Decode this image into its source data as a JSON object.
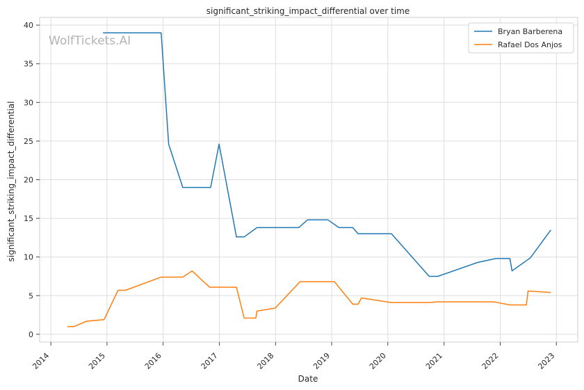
{
  "watermark": "WolfTickets.AI",
  "chart_data": {
    "type": "line",
    "title": "significant_striking_impact_differential over time",
    "xlabel": "Date",
    "ylabel": "significant_striking_impact_differential",
    "x_ticks": [
      "2014",
      "2015",
      "2016",
      "2017",
      "2018",
      "2019",
      "2020",
      "2021",
      "2022",
      "2023"
    ],
    "y_ticks": [
      "0",
      "5",
      "10",
      "15",
      "20",
      "25",
      "30",
      "35",
      "40"
    ],
    "xlim": [
      "2013-10-20",
      "2023-05-20"
    ],
    "ylim": [
      -1.0,
      41.0
    ],
    "grid": true,
    "legend_position": "top-right",
    "series": [
      {
        "name": "Bryan Barberena",
        "color": "#1f77b4",
        "points": [
          [
            "2014-12-06",
            39.0
          ],
          [
            "2015-12-19",
            39.0
          ],
          [
            "2016-02-06",
            24.6
          ],
          [
            "2016-05-08",
            19.0
          ],
          [
            "2016-11-05",
            19.0
          ],
          [
            "2016-12-30",
            24.6
          ],
          [
            "2017-04-22",
            12.6
          ],
          [
            "2017-06-11",
            12.6
          ],
          [
            "2017-09-02",
            13.8
          ],
          [
            "2018-06-01",
            13.8
          ],
          [
            "2018-07-28",
            14.8
          ],
          [
            "2018-12-08",
            14.8
          ],
          [
            "2019-02-17",
            13.8
          ],
          [
            "2019-05-18",
            13.8
          ],
          [
            "2019-06-22",
            13.0
          ],
          [
            "2020-01-25",
            13.0
          ],
          [
            "2020-09-26",
            7.5
          ],
          [
            "2020-11-21",
            7.5
          ],
          [
            "2021-08-07",
            9.3
          ],
          [
            "2021-12-04",
            9.8
          ],
          [
            "2022-03-05",
            9.8
          ],
          [
            "2022-03-19",
            8.2
          ],
          [
            "2022-07-16",
            9.9
          ],
          [
            "2022-11-26",
            13.5
          ]
        ]
      },
      {
        "name": "Rafael Dos Anjos",
        "color": "#ff7f0e",
        "points": [
          [
            "2014-04-19",
            1.0
          ],
          [
            "2014-05-31",
            1.0
          ],
          [
            "2014-08-23",
            1.7
          ],
          [
            "2014-12-13",
            1.9
          ],
          [
            "2015-03-14",
            5.7
          ],
          [
            "2015-05-02",
            5.7
          ],
          [
            "2015-12-19",
            7.4
          ],
          [
            "2016-05-08",
            7.4
          ],
          [
            "2016-07-07",
            8.2
          ],
          [
            "2016-10-29",
            6.1
          ],
          [
            "2017-04-22",
            6.1
          ],
          [
            "2017-06-11",
            2.1
          ],
          [
            "2017-08-26",
            2.1
          ],
          [
            "2017-09-02",
            3.0
          ],
          [
            "2017-12-30",
            3.4
          ],
          [
            "2018-06-09",
            6.8
          ],
          [
            "2019-01-19",
            6.8
          ],
          [
            "2019-05-18",
            3.9
          ],
          [
            "2019-06-22",
            3.9
          ],
          [
            "2019-07-13",
            4.7
          ],
          [
            "2020-01-25",
            4.1
          ],
          [
            "2020-10-01",
            4.1
          ],
          [
            "2020-11-14",
            4.2
          ],
          [
            "2021-11-20",
            4.2
          ],
          [
            "2022-03-05",
            3.8
          ],
          [
            "2022-06-20",
            3.8
          ],
          [
            "2022-07-01",
            5.6
          ],
          [
            "2022-11-26",
            5.4
          ]
        ]
      }
    ]
  }
}
